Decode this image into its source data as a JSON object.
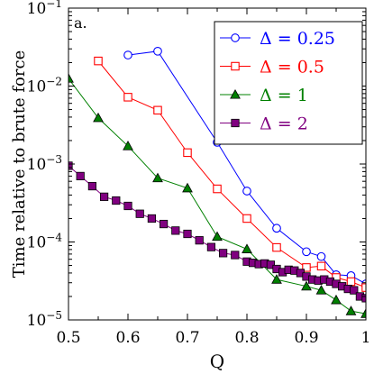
{
  "panel_label": "a.",
  "chart_data": {
    "type": "line",
    "xlabel": "Q",
    "ylabel": "Time relative to brute force",
    "xlim": [
      0.5,
      1.0
    ],
    "ylim": [
      1e-05,
      0.1
    ],
    "yscale": "log",
    "grid": false,
    "legend_position": "top-right",
    "x_ticks": [
      0.5,
      0.6,
      0.7,
      0.8,
      0.9,
      1.0
    ],
    "x_tick_labels": [
      "0.5",
      "0.6",
      "0.7",
      "0.8",
      "0.9",
      "1"
    ],
    "y_ticks": [
      {
        "value": 1e-05,
        "base": "10",
        "exp": "−5"
      },
      {
        "value": 0.0001,
        "base": "10",
        "exp": "−4"
      },
      {
        "value": 0.001,
        "base": "10",
        "exp": "−3"
      },
      {
        "value": 0.01,
        "base": "10",
        "exp": "−2"
      },
      {
        "value": 0.1,
        "base": "10",
        "exp": "−1"
      }
    ],
    "series": [
      {
        "name": "Δ = 0.25",
        "color": "#0000ff",
        "marker": "circle-open",
        "x": [
          0.6,
          0.65,
          0.75,
          0.8,
          0.85,
          0.9,
          0.925,
          0.95,
          0.975,
          1.0
        ],
        "y": [
          0.025,
          0.028,
          0.0019,
          0.00045,
          0.00015,
          7.5e-05,
          6.5e-05,
          3.8e-05,
          3.7e-05,
          2.9e-05
        ]
      },
      {
        "name": "Δ = 0.5",
        "color": "#ff0000",
        "marker": "square-open",
        "x": [
          0.55,
          0.6,
          0.65,
          0.7,
          0.75,
          0.8,
          0.85,
          0.9,
          0.925,
          0.95,
          0.975,
          1.0
        ],
        "y": [
          0.021,
          0.0072,
          0.0049,
          0.0014,
          0.00048,
          0.0002,
          8.5e-05,
          4.7e-05,
          4.9e-05,
          3.5e-05,
          3.1e-05,
          2.6e-05
        ]
      },
      {
        "name": "Δ = 1",
        "color": "#008000",
        "marker": "triangle-filled",
        "x": [
          0.5,
          0.55,
          0.6,
          0.65,
          0.7,
          0.75,
          0.8,
          0.85,
          0.9,
          0.925,
          0.95,
          0.975,
          1.0
        ],
        "y": [
          0.0125,
          0.0039,
          0.0017,
          0.00066,
          0.00049,
          0.000117,
          8.1e-05,
          3.3e-05,
          2.7e-05,
          2.4e-05,
          1.8e-05,
          1.3e-05,
          1.2e-05
        ]
      },
      {
        "name": "Δ = 2",
        "color": "#800080",
        "marker": "square-filled",
        "x": [
          0.5,
          0.52,
          0.54,
          0.56,
          0.58,
          0.6,
          0.62,
          0.64,
          0.66,
          0.68,
          0.7,
          0.72,
          0.74,
          0.76,
          0.78,
          0.8,
          0.81,
          0.82,
          0.83,
          0.84,
          0.85,
          0.86,
          0.87,
          0.88,
          0.89,
          0.9,
          0.91,
          0.92,
          0.93,
          0.94,
          0.95,
          0.96,
          0.97,
          0.98,
          0.99,
          1.0
        ],
        "y": [
          0.00095,
          0.0007,
          0.00052,
          0.00038,
          0.00034,
          0.00029,
          0.00023,
          0.0002,
          0.00017,
          0.00014,
          0.000127,
          0.000105,
          8.6e-05,
          7.2e-05,
          6.8e-05,
          5.6e-05,
          5.4e-05,
          5.2e-05,
          5.3e-05,
          5.1e-05,
          4.5e-05,
          4.1e-05,
          4.4e-05,
          4.3e-05,
          4e-05,
          3.6e-05,
          3.3e-05,
          3.2e-05,
          3.3e-05,
          3.1e-05,
          2.9e-05,
          2.7e-05,
          2.5e-05,
          2.4e-05,
          2e-05,
          1.9e-05
        ]
      }
    ]
  }
}
